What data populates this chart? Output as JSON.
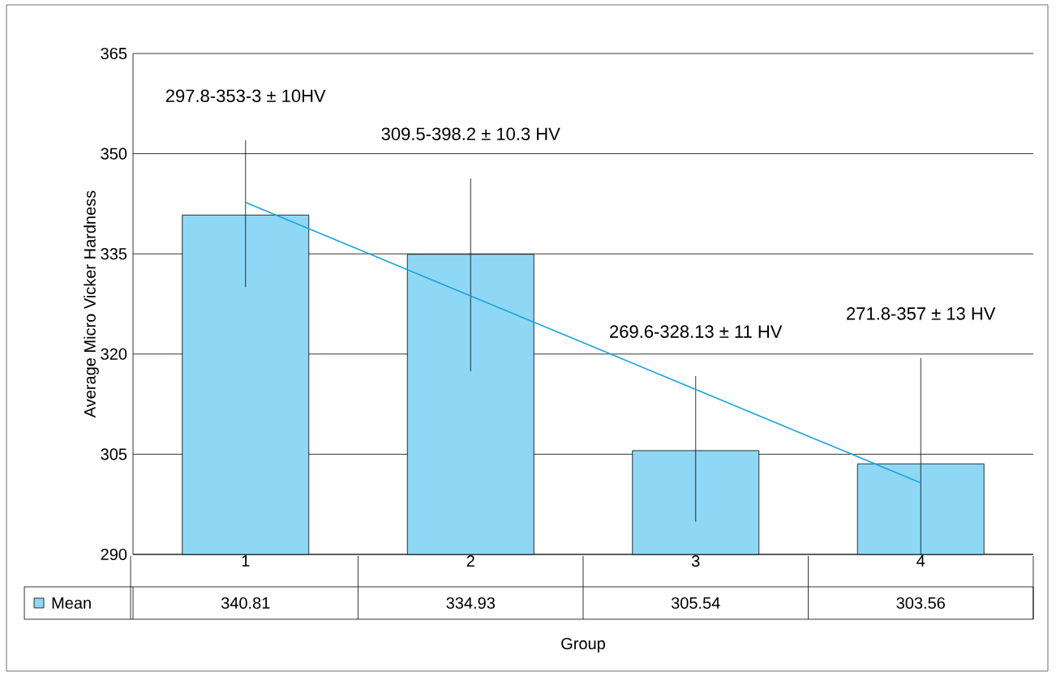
{
  "chart_data": {
    "type": "bar",
    "xlabel": "Group",
    "ylabel": "Average Micro Vicker Hardness",
    "categories": [
      "1",
      "2",
      "3",
      "4"
    ],
    "series": [
      {
        "name": "Mean",
        "color": "#8fd8f5",
        "values": [
          340.81,
          334.93,
          305.54,
          303.56
        ],
        "value_labels": [
          "340.81",
          "334.93",
          "305.54",
          "303.56"
        ],
        "errors": [
          [
            330,
            352
          ],
          [
            317.4,
            346.3
          ],
          [
            294.9,
            316.7
          ],
          [
            290,
            319.4
          ]
        ]
      },
      {
        "type": "line",
        "color": "#1aa3e0",
        "x": [
          "1",
          "4"
        ],
        "values": [
          342.7,
          300.7
        ]
      }
    ],
    "annotations": [
      "297.8-353-3 ± 10HV",
      "309.5-398.2 ± 10.3 HV",
      "269.6-328.13 ± 11 HV",
      "271.8-357 ± 13 HV"
    ],
    "ylim": [
      290,
      365
    ],
    "yticks": [
      290,
      305,
      320,
      335,
      350,
      365
    ],
    "grid": "y",
    "legend": "bottom left"
  }
}
